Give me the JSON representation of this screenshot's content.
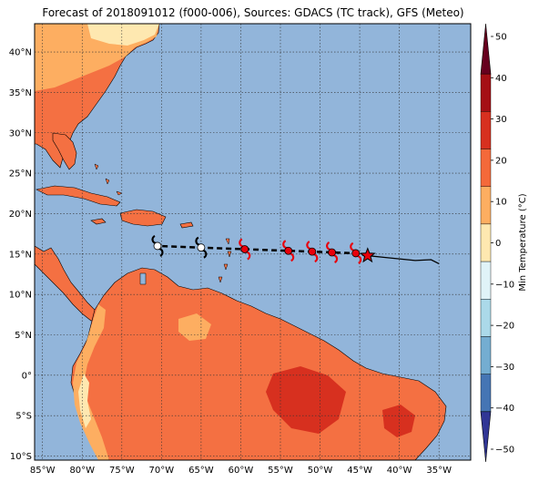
{
  "title": "Forecast of 2018091012 (f000-006), Sources: GDACS (TC track), GFS (Meteo)",
  "map": {
    "lon_ticks": [
      "85°W",
      "80°W",
      "75°W",
      "70°W",
      "65°W",
      "60°W",
      "55°W",
      "50°W",
      "45°W",
      "40°W",
      "35°W"
    ],
    "lat_ticks": [
      "40°N",
      "35°N",
      "30°N",
      "25°N",
      "20°N",
      "15°N",
      "10°N",
      "5°N",
      "0°",
      "5°S",
      "10°S"
    ],
    "lon_range": [
      -86,
      -31
    ],
    "lat_range": [
      -10.5,
      43.5
    ]
  },
  "colorbar": {
    "label": "Min Temperature (°C)",
    "ticks": [
      "50",
      "40",
      "30",
      "20",
      "10",
      "0",
      "−10",
      "−20",
      "−30",
      "−40",
      "−50"
    ],
    "colors": [
      "#67001f",
      "#a50f15",
      "#d7301f",
      "#f4693a",
      "#fdae61",
      "#fee8b0",
      "#e0f3f8",
      "#abd9e9",
      "#74add1",
      "#4575b4",
      "#313695"
    ]
  },
  "track": {
    "current_position": {
      "lon": -44,
      "lat": 14.8
    },
    "past_track": [
      [
        -44,
        14.8
      ],
      [
        -42,
        14.6
      ],
      [
        -40,
        14.4
      ],
      [
        -38,
        14.2
      ],
      [
        -36,
        14.3
      ],
      [
        -35,
        13.8
      ]
    ],
    "forecast_points": [
      {
        "lon": -45.5,
        "lat": 15.1,
        "color": "#e8000b"
      },
      {
        "lon": -48.5,
        "lat": 15.2,
        "color": "#e8000b"
      },
      {
        "lon": -51,
        "lat": 15.3,
        "color": "#e8000b"
      },
      {
        "lon": -54,
        "lat": 15.4,
        "color": "#e8000b"
      },
      {
        "lon": -59.5,
        "lat": 15.6,
        "color": "#e8000b"
      },
      {
        "lon": -65,
        "lat": 15.8,
        "color": "#ffffff"
      },
      {
        "lon": -70.5,
        "lat": 16.0,
        "color": "#ffffff"
      }
    ]
  }
}
